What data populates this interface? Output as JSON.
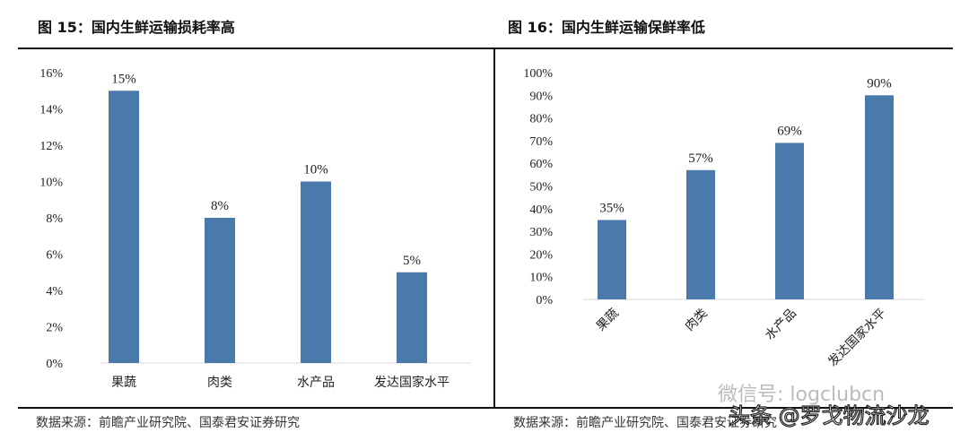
{
  "chart_data": [
    {
      "type": "bar",
      "title": "图 15：国内生鲜运输损耗率高",
      "categories": [
        "果蔬",
        "肉类",
        "水产品",
        "发达国家水平"
      ],
      "values": [
        15,
        8,
        10,
        5
      ],
      "data_labels": [
        "15%",
        "8%",
        "10%",
        "5%"
      ],
      "ylim": [
        0,
        16
      ],
      "yticks": [
        "0%",
        "2%",
        "4%",
        "6%",
        "8%",
        "10%",
        "12%",
        "14%",
        "16%"
      ],
      "grid": false,
      "color": "#4a7aab",
      "source": "数据来源：前瞻产业研究院、国泰君安证券研究"
    },
    {
      "type": "bar",
      "title": "图 16：国内生鲜运输保鲜率低",
      "categories": [
        "果蔬",
        "肉类",
        "水产品",
        "发达国家水平"
      ],
      "values": [
        35,
        57,
        69,
        90
      ],
      "data_labels": [
        "35%",
        "57%",
        "69%",
        "90%"
      ],
      "ylim": [
        0,
        100
      ],
      "yticks": [
        "0%",
        "10%",
        "20%",
        "30%",
        "40%",
        "50%",
        "60%",
        "70%",
        "80%",
        "90%",
        "100%"
      ],
      "grid": false,
      "color": "#4a7aab",
      "category_label_rotation": "-45deg",
      "source": "数据来源：前瞻产业研究院、国泰君安证券研究"
    }
  ],
  "watermarks": [
    "微信号: logclubcn",
    "头条 @罗戈物流沙龙"
  ]
}
